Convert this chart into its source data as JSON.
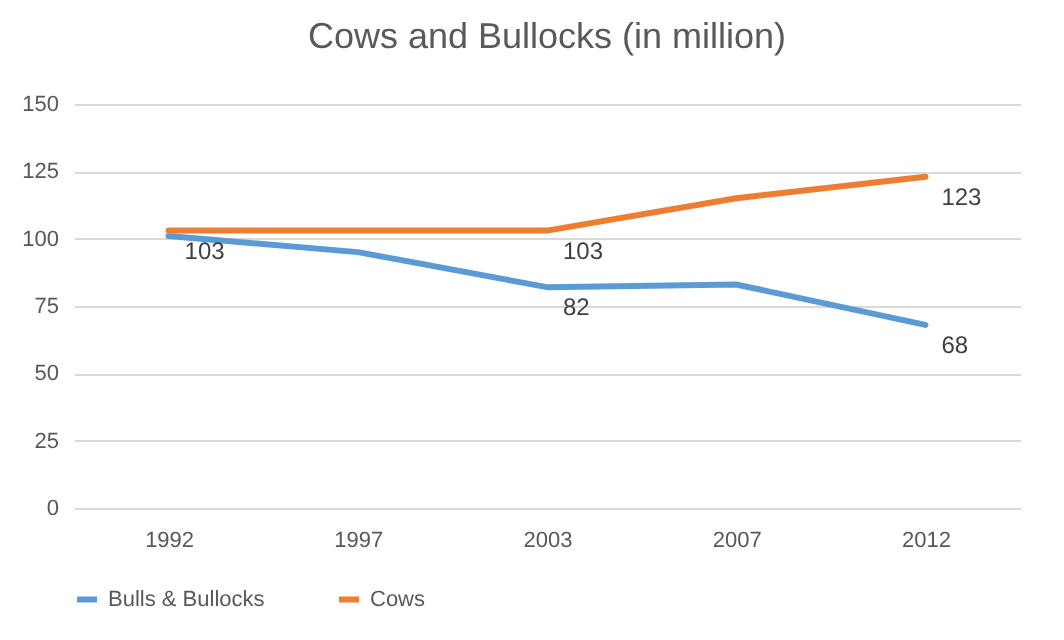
{
  "chart_data": {
    "type": "line",
    "title": "Cows and Bullocks (in million)",
    "categories": [
      "1992",
      "1997",
      "2003",
      "2007",
      "2012"
    ],
    "series": [
      {
        "name": "Bulls & Bullocks",
        "color": "#5b9bd5",
        "values": [
          101,
          95,
          82,
          83,
          68
        ],
        "value_labels": [
          null,
          null,
          "82",
          null,
          "68"
        ]
      },
      {
        "name": "Cows",
        "color": "#ed7d31",
        "values": [
          103,
          103,
          103,
          115,
          123
        ],
        "value_labels": [
          "103",
          null,
          "103",
          null,
          "123"
        ]
      }
    ],
    "ylim": [
      0,
      150
    ],
    "yticks": [
      0,
      25,
      50,
      75,
      100,
      125,
      150
    ],
    "grid": "y",
    "legend": "bottom",
    "marker": "none",
    "line_style": "solid"
  }
}
